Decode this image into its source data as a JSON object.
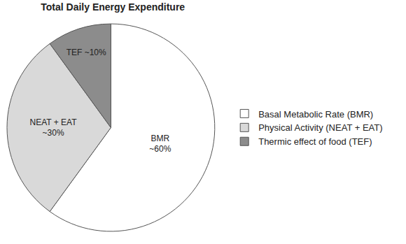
{
  "chart_data": {
    "type": "pie",
    "title": "Total Daily Energy Expenditure",
    "categories": [
      "Basal Metabolic Rate (BMR)",
      "Physical Activity (NEAT + EAT)",
      "Thermic effect of food (TEF)"
    ],
    "values": [
      60,
      30,
      10
    ],
    "value_labels": [
      "BMR\n~60%",
      "NEAT + EAT\n~30%",
      "TEF ~10%"
    ],
    "colors": [
      "#ffffff",
      "#d9d9d9",
      "#8c8c8c"
    ],
    "data_labels": true,
    "legend": "right"
  }
}
